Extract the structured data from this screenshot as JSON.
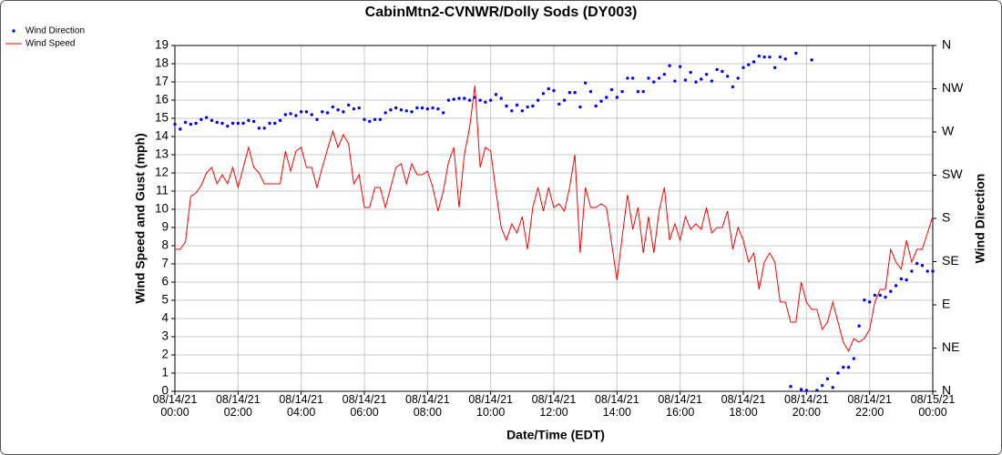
{
  "chart_data": {
    "type": "line",
    "title": "CabinMtn2-CVNWR/Dolly Sods (DY003)",
    "x_label": "Date/Time (EDT)",
    "y_label": "Wind Speed and Gust (mph)",
    "y2_label": "Wind Direction",
    "x": [
      "08/14/21 00:00",
      "08/14/21 00:10",
      "08/14/21 00:20",
      "08/14/21 00:30",
      "08/14/21 00:40",
      "08/14/21 00:50",
      "08/14/21 01:00",
      "08/14/21 01:10",
      "08/14/21 01:20",
      "08/14/21 01:30",
      "08/14/21 01:40",
      "08/14/21 01:50",
      "08/14/21 02:00",
      "08/14/21 02:10",
      "08/14/21 02:20",
      "08/14/21 02:30",
      "08/14/21 02:40",
      "08/14/21 02:50",
      "08/14/21 03:00",
      "08/14/21 03:10",
      "08/14/21 03:20",
      "08/14/21 03:30",
      "08/14/21 03:40",
      "08/14/21 03:50",
      "08/14/21 04:00",
      "08/14/21 04:10",
      "08/14/21 04:20",
      "08/14/21 04:30",
      "08/14/21 04:40",
      "08/14/21 04:50",
      "08/14/21 05:00",
      "08/14/21 05:10",
      "08/14/21 05:20",
      "08/14/21 05:30",
      "08/14/21 05:40",
      "08/14/21 05:50",
      "08/14/21 06:00",
      "08/14/21 06:10",
      "08/14/21 06:20",
      "08/14/21 06:30",
      "08/14/21 06:40",
      "08/14/21 06:50",
      "08/14/21 07:00",
      "08/14/21 07:10",
      "08/14/21 07:20",
      "08/14/21 07:30",
      "08/14/21 07:40",
      "08/14/21 07:50",
      "08/14/21 08:00",
      "08/14/21 08:10",
      "08/14/21 08:20",
      "08/14/21 08:30",
      "08/14/21 08:40",
      "08/14/21 08:50",
      "08/14/21 09:00",
      "08/14/21 09:10",
      "08/14/21 09:20",
      "08/14/21 09:30",
      "08/14/21 09:40",
      "08/14/21 09:50",
      "08/14/21 10:00",
      "08/14/21 10:10",
      "08/14/21 10:20",
      "08/14/21 10:30",
      "08/14/21 10:40",
      "08/14/21 10:50",
      "08/14/21 11:00",
      "08/14/21 11:10",
      "08/14/21 11:20",
      "08/14/21 11:30",
      "08/14/21 11:40",
      "08/14/21 11:50",
      "08/14/21 12:00",
      "08/14/21 12:10",
      "08/14/21 12:20",
      "08/14/21 12:30",
      "08/14/21 12:40",
      "08/14/21 12:50",
      "08/14/21 13:00",
      "08/14/21 13:10",
      "08/14/21 13:20",
      "08/14/21 13:30",
      "08/14/21 13:40",
      "08/14/21 13:50",
      "08/14/21 14:00",
      "08/14/21 14:10",
      "08/14/21 14:20",
      "08/14/21 14:30",
      "08/14/21 14:40",
      "08/14/21 14:50",
      "08/14/21 15:00",
      "08/14/21 15:10",
      "08/14/21 15:20",
      "08/14/21 15:30",
      "08/14/21 15:40",
      "08/14/21 15:50",
      "08/14/21 16:00",
      "08/14/21 16:10",
      "08/14/21 16:20",
      "08/14/21 16:30",
      "08/14/21 16:40",
      "08/14/21 16:50",
      "08/14/21 17:00",
      "08/14/21 17:10",
      "08/14/21 17:20",
      "08/14/21 17:30",
      "08/14/21 17:40",
      "08/14/21 17:50",
      "08/14/21 18:00",
      "08/14/21 18:10",
      "08/14/21 18:20",
      "08/14/21 18:30",
      "08/14/21 18:40",
      "08/14/21 18:50",
      "08/14/21 19:00",
      "08/14/21 19:10",
      "08/14/21 19:20",
      "08/14/21 19:30",
      "08/14/21 19:40",
      "08/14/21 19:50",
      "08/14/21 20:00",
      "08/14/21 20:10",
      "08/14/21 20:20",
      "08/14/21 20:30",
      "08/14/21 20:40",
      "08/14/21 20:50",
      "08/14/21 21:00",
      "08/14/21 21:10",
      "08/14/21 21:20",
      "08/14/21 21:30",
      "08/14/21 21:40",
      "08/14/21 21:50",
      "08/14/21 22:00",
      "08/14/21 22:10",
      "08/14/21 22:20",
      "08/14/21 22:30",
      "08/14/21 22:40",
      "08/14/21 22:50",
      "08/14/21 23:00",
      "08/14/21 23:10",
      "08/14/21 23:20",
      "08/14/21 23:30",
      "08/14/21 23:40",
      "08/14/21 23:50",
      "08/15/21 00:00"
    ],
    "series": [
      {
        "name": "Wind Direction",
        "color": "#0000ff",
        "mode": "markers",
        "axis": "y2",
        "values": [
          278,
          273,
          280,
          278,
          279,
          283,
          285,
          282,
          280,
          279,
          276,
          279,
          279,
          279,
          282,
          281,
          274,
          274,
          279,
          279,
          282,
          288,
          289,
          287,
          291,
          291,
          288,
          283,
          291,
          290,
          296,
          293,
          291,
          298,
          294,
          295,
          283,
          281,
          283,
          283,
          290,
          293,
          295,
          293,
          292,
          291,
          295,
          295,
          294,
          295,
          294,
          290,
          303,
          304,
          305,
          305,
          303,
          306,
          303,
          301,
          303,
          309,
          305,
          297,
          292,
          298,
          292,
          296,
          297,
          303,
          310,
          315,
          313,
          299,
          303,
          311,
          311,
          296,
          321,
          312,
          297,
          302,
          306,
          314,
          306,
          312,
          326,
          326,
          312,
          312,
          326,
          322,
          326,
          330,
          339,
          323,
          338,
          324,
          332,
          322,
          325,
          330,
          323,
          335,
          333,
          328,
          317,
          326,
          337,
          340,
          343,
          349,
          348,
          348,
          337,
          348,
          346,
          5,
          352,
          2,
          1,
          345,
          1,
          6,
          13,
          4,
          19,
          25,
          25,
          34,
          68,
          95,
          93,
          100,
          100,
          98,
          104,
          110,
          117,
          116,
          125,
          133,
          131,
          125,
          125
        ]
      },
      {
        "name": "Wind Speed",
        "color": "#ff0000",
        "mode": "lines",
        "values": [
          7.8,
          7.8,
          8.2,
          10.7,
          10.9,
          11.3,
          12.0,
          12.3,
          11.4,
          11.9,
          11.4,
          12.3,
          11.2,
          12.3,
          13.4,
          12.3,
          12.0,
          11.4,
          11.4,
          11.4,
          11.4,
          13.2,
          12.1,
          13.2,
          13.4,
          12.3,
          12.3,
          11.2,
          12.3,
          13.3,
          14.3,
          13.4,
          14.1,
          13.6,
          11.4,
          11.9,
          10.1,
          10.1,
          11.2,
          11.2,
          10.1,
          11.2,
          12.3,
          12.5,
          11.4,
          12.5,
          11.9,
          11.9,
          12.1,
          11.2,
          9.9,
          11.0,
          12.6,
          13.4,
          10.1,
          13.0,
          14.5,
          16.8,
          12.3,
          13.4,
          13.2,
          11.0,
          9.0,
          8.3,
          9.2,
          8.7,
          9.6,
          7.8,
          10.1,
          11.2,
          9.9,
          11.2,
          10.1,
          10.3,
          9.9,
          11.2,
          13.0,
          7.6,
          11.2,
          10.1,
          10.1,
          10.3,
          10.1,
          8.1,
          6.1,
          8.5,
          10.8,
          8.9,
          10.1,
          7.6,
          9.6,
          7.6,
          9.9,
          11.2,
          8.3,
          9.2,
          8.3,
          9.6,
          8.9,
          9.2,
          8.9,
          10.1,
          8.7,
          9.0,
          9.0,
          9.9,
          7.8,
          9.0,
          8.3,
          7.1,
          7.6,
          5.6,
          7.1,
          7.6,
          7.1,
          4.9,
          4.9,
          3.8,
          3.8,
          6.0,
          4.9,
          4.5,
          4.5,
          3.4,
          3.8,
          4.9,
          3.8,
          2.7,
          2.2,
          2.9,
          2.7,
          2.9,
          3.4,
          4.9,
          5.6,
          5.6,
          7.8,
          7.1,
          6.7,
          8.3,
          7.1,
          7.8,
          7.8,
          8.7,
          9.6
        ]
      }
    ],
    "xlim": [
      "08/14/21 00:00",
      "08/15/21 00:00"
    ],
    "xticks": [
      "08/14/21 00:00",
      "08/14/21 02:00",
      "08/14/21 04:00",
      "08/14/21 06:00",
      "08/14/21 08:00",
      "08/14/21 10:00",
      "08/14/21 12:00",
      "08/14/21 14:00",
      "08/14/21 16:00",
      "08/14/21 18:00",
      "08/14/21 20:00",
      "08/14/21 22:00",
      "08/15/21 00:00"
    ],
    "ylim": [
      0,
      19
    ],
    "yticks": [
      0,
      1,
      2,
      3,
      4,
      5,
      6,
      7,
      8,
      9,
      10,
      11,
      12,
      13,
      14,
      15,
      16,
      17,
      18,
      19
    ],
    "y2lim": [
      0,
      360
    ],
    "y2ticks": [
      {
        "value": 0,
        "label": "N"
      },
      {
        "value": 45,
        "label": "NE"
      },
      {
        "value": 90,
        "label": "E"
      },
      {
        "value": 135,
        "label": "SE"
      },
      {
        "value": 180,
        "label": "S"
      },
      {
        "value": 225,
        "label": "SW"
      },
      {
        "value": 270,
        "label": "W"
      },
      {
        "value": 315,
        "label": "NW"
      },
      {
        "value": 360,
        "label": "N"
      }
    ],
    "grid": true,
    "legend": "top-left"
  }
}
